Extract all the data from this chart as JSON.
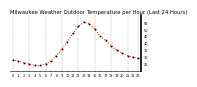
{
  "title": "Milwaukee Weather Outdoor Temperature per Hour (Last 24 Hours)",
  "hours": [
    0,
    1,
    2,
    3,
    4,
    5,
    6,
    7,
    8,
    9,
    10,
    11,
    12,
    13,
    14,
    15,
    16,
    17,
    18,
    19,
    20,
    21,
    22,
    23
  ],
  "temps": [
    28,
    27,
    26,
    25,
    24,
    24,
    25,
    27,
    31,
    36,
    41,
    47,
    52,
    55,
    54,
    50,
    45,
    42,
    38,
    35,
    33,
    31,
    30,
    29
  ],
  "line_color": "#ff0000",
  "marker_color": "#000000",
  "bg_color": "#ffffff",
  "grid_color": "#888888",
  "ylim_min": 20,
  "ylim_max": 60,
  "yticks": [
    25,
    30,
    35,
    40,
    45,
    50,
    55
  ],
  "grid_hours": [
    0,
    3,
    6,
    9,
    12,
    15,
    18,
    21,
    23
  ],
  "title_fontsize": 3.8,
  "tick_fontsize": 2.5
}
